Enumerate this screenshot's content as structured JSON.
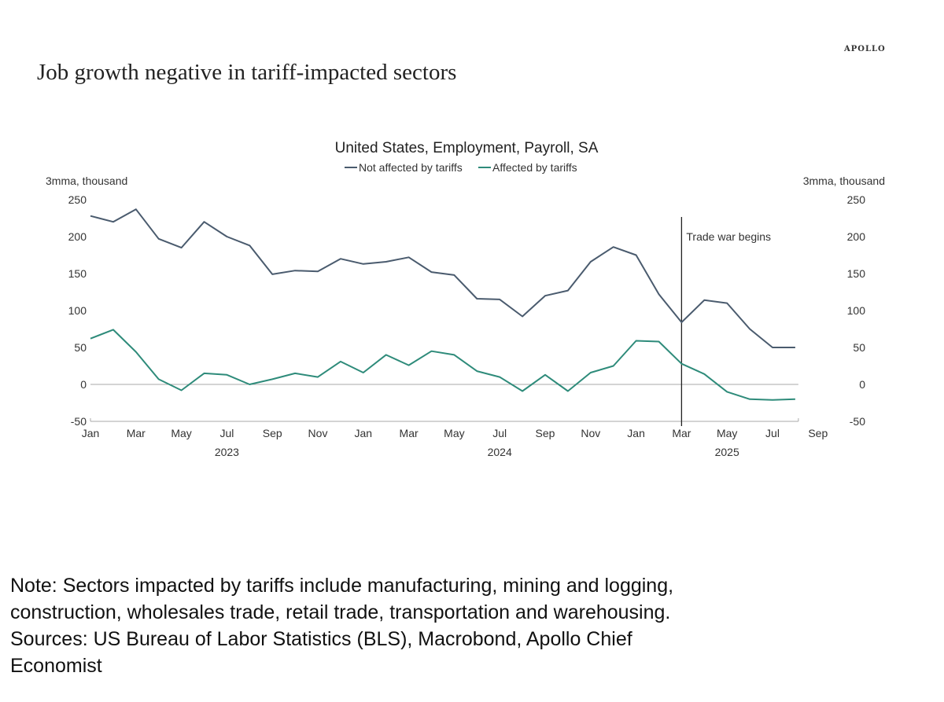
{
  "brand": "APOLLO",
  "headline": "Job growth negative in tariff-impacted sectors",
  "note_lines": [
    "Note: Sectors impacted by tariffs include manufacturing, mining and logging,",
    "construction, wholesales trade, retail trade, transportation and warehousing.",
    "Sources: US Bureau of Labor Statistics (BLS), Macrobond, Apollo Chief",
    "Economist"
  ],
  "colors": {
    "not_affected": "#4a5b6e",
    "affected": "#2e8b7a",
    "grid": "#aaaaaa",
    "axis": "#333333"
  },
  "chart_data": {
    "type": "line",
    "title": "United States, Employment, Payroll, SA",
    "ylabel_left": "3mma, thousand",
    "ylabel_right": "3mma, thousand",
    "ylim": [
      -50,
      250
    ],
    "yticks": [
      "250",
      "200",
      "150",
      "100",
      "50",
      "0",
      "-50"
    ],
    "ytick_values": [
      250,
      200,
      150,
      100,
      50,
      0,
      -50
    ],
    "x_tick_labels": [
      "Jan",
      "Mar",
      "May",
      "Jul",
      "Sep",
      "Nov",
      "Jan",
      "Mar",
      "May",
      "Jul",
      "Sep",
      "Nov",
      "Jan",
      "Mar",
      "May",
      "Jul",
      "Sep"
    ],
    "x_tick_month_index": [
      0,
      2,
      4,
      6,
      8,
      10,
      12,
      14,
      16,
      18,
      20,
      22,
      24,
      26,
      28,
      30,
      32
    ],
    "years": [
      {
        "label": "2023",
        "month_index": 6
      },
      {
        "label": "2024",
        "month_index": 18
      },
      {
        "label": "2025",
        "month_index": 28
      }
    ],
    "start": "Jan 2023",
    "end": "Aug 2025",
    "annotation": {
      "text": "Trade war begins",
      "month_index": 26
    },
    "series": [
      {
        "name": "Not affected by tariffs",
        "values": [
          228,
          220,
          237,
          197,
          185,
          220,
          200,
          188,
          149,
          154,
          153,
          170,
          163,
          166,
          172,
          152,
          148,
          116,
          115,
          92,
          120,
          127,
          166,
          186,
          175,
          122,
          84,
          114,
          110,
          75,
          50,
          50
        ]
      },
      {
        "name": "Affected by tariffs",
        "values": [
          62,
          74,
          44,
          7,
          -8,
          15,
          13,
          0,
          7,
          15,
          10,
          31,
          16,
          40,
          26,
          45,
          40,
          18,
          10,
          -9,
          13,
          -9,
          16,
          25,
          59,
          58,
          28,
          14,
          -10,
          -20,
          -21,
          -20
        ]
      }
    ]
  }
}
